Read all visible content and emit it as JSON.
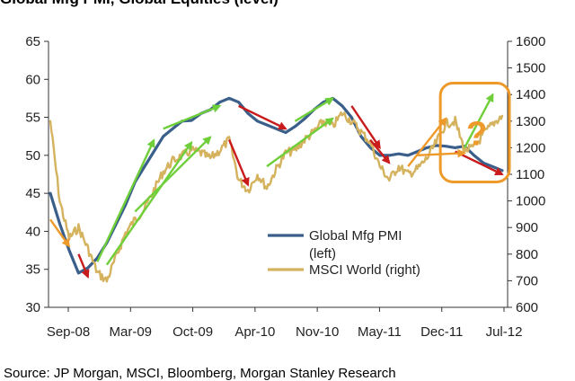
{
  "title": "Global Mfg PMI, Global Equities (level)",
  "source": "Source:  JP Morgan, MSCI, Bloomberg, Morgan Stanley Research",
  "chart_data": {
    "type": "line",
    "x_tick_labels": [
      "Sep-08",
      "Mar-09",
      "Oct-09",
      "Apr-10",
      "Nov-10",
      "May-11",
      "Dec-11",
      "Jul-12"
    ],
    "y_left": {
      "min": 30,
      "max": 65,
      "ticks": [
        "30",
        "35",
        "40",
        "45",
        "50",
        "55",
        "60",
        "65"
      ]
    },
    "y_right": {
      "min": 600,
      "max": 1600,
      "ticks": [
        "600",
        "700",
        "800",
        "900",
        "1000",
        "1100",
        "1200",
        "1300",
        "1400",
        "1500",
        "1600"
      ]
    },
    "grid": false,
    "legend_position": "bottom-center",
    "series": [
      {
        "name": "Global Mfg PMI (left)",
        "axis": "left",
        "color": "#3a5f8a",
        "x": [
          "2008-09",
          "2008-10",
          "2008-11",
          "2008-12",
          "2009-01",
          "2009-02",
          "2009-03",
          "2009-04",
          "2009-05",
          "2009-06",
          "2009-07",
          "2009-08",
          "2009-09",
          "2009-10",
          "2009-11",
          "2009-12",
          "2010-01",
          "2010-02",
          "2010-03",
          "2010-04",
          "2010-05",
          "2010-06",
          "2010-07",
          "2010-08",
          "2010-09",
          "2010-10",
          "2010-11",
          "2010-12",
          "2011-01",
          "2011-02",
          "2011-03",
          "2011-04",
          "2011-05",
          "2011-06",
          "2011-07",
          "2011-08",
          "2011-09",
          "2011-10",
          "2011-11",
          "2011-12",
          "2012-01",
          "2012-02",
          "2012-03",
          "2012-04",
          "2012-05",
          "2012-06",
          "2012-07",
          "2012-08",
          "2012-09"
        ],
        "values": [
          45.0,
          41.0,
          37.5,
          34.5,
          35.2,
          36.5,
          38.5,
          41.0,
          43.5,
          46.5,
          48.5,
          50.5,
          52.5,
          53.5,
          54.5,
          54.6,
          55.5,
          56.0,
          57.0,
          57.5,
          57.0,
          55.5,
          54.5,
          54.0,
          53.5,
          53.0,
          53.8,
          54.8,
          56.0,
          57.0,
          57.5,
          56.5,
          55.0,
          52.5,
          51.0,
          50.0,
          50.0,
          50.2,
          50.0,
          50.5,
          51.0,
          51.3,
          51.2,
          51.0,
          51.2,
          50.0,
          49.0,
          48.5,
          48.0
        ]
      },
      {
        "name": "MSCI World (right)",
        "axis": "right",
        "color": "#d4b25e",
        "x": [
          "2008-09",
          "2008-10",
          "2008-11",
          "2008-12",
          "2009-01",
          "2009-02",
          "2009-03",
          "2009-04",
          "2009-05",
          "2009-06",
          "2009-07",
          "2009-08",
          "2009-09",
          "2009-10",
          "2009-11",
          "2009-12",
          "2010-01",
          "2010-02",
          "2010-03",
          "2010-04",
          "2010-05",
          "2010-06",
          "2010-07",
          "2010-08",
          "2010-09",
          "2010-10",
          "2010-11",
          "2010-12",
          "2011-01",
          "2011-02",
          "2011-03",
          "2011-04",
          "2011-05",
          "2011-06",
          "2011-07",
          "2011-08",
          "2011-09",
          "2011-10",
          "2011-11",
          "2011-12",
          "2012-01",
          "2012-02",
          "2012-03",
          "2012-04",
          "2012-05",
          "2012-06",
          "2012-07",
          "2012-08",
          "2012-09"
        ],
        "values": [
          1300,
          1000,
          860,
          900,
          820,
          730,
          700,
          790,
          880,
          930,
          970,
          1040,
          1110,
          1150,
          1170,
          1190,
          1180,
          1160,
          1190,
          1230,
          1080,
          1040,
          1100,
          1050,
          1120,
          1180,
          1190,
          1230,
          1260,
          1300,
          1280,
          1330,
          1300,
          1260,
          1220,
          1130,
          1080,
          1130,
          1100,
          1120,
          1160,
          1220,
          1290,
          1300,
          1190,
          1200,
          1250,
          1290,
          1320
        ]
      }
    ],
    "annotations": [
      {
        "type": "arrow",
        "color": "red",
        "axis": "left",
        "from": [
          "2008-12",
          37.0
        ],
        "to": [
          "2009-01",
          34.0
        ]
      },
      {
        "type": "arrow",
        "color": "green",
        "axis": "left",
        "from": [
          "2009-02",
          36.0
        ],
        "to": [
          "2009-08",
          52.0
        ]
      },
      {
        "type": "arrow",
        "color": "green",
        "axis": "left",
        "from": [
          "2009-09",
          53.5
        ],
        "to": [
          "2010-03",
          56.5
        ]
      },
      {
        "type": "arrow",
        "color": "red",
        "axis": "left",
        "from": [
          "2010-05",
          56.5
        ],
        "to": [
          "2010-10",
          53.5
        ]
      },
      {
        "type": "arrow",
        "color": "green",
        "axis": "left",
        "from": [
          "2010-11",
          54.5
        ],
        "to": [
          "2011-03",
          57.5
        ]
      },
      {
        "type": "arrow",
        "color": "red",
        "axis": "left",
        "from": [
          "2011-05",
          56.5
        ],
        "to": [
          "2011-08",
          51.0
        ]
      },
      {
        "type": "arrow",
        "color": "red",
        "axis": "left",
        "from": [
          "2011-07",
          52.0
        ],
        "to": [
          "2011-09",
          49.0
        ]
      },
      {
        "type": "arrow",
        "color": "red",
        "axis": "left",
        "from": [
          "2012-04",
          50.5
        ],
        "to": [
          "2012-09",
          47.5
        ]
      },
      {
        "type": "arrow",
        "color": "orange",
        "axis": "left",
        "from": [
          "2011-12",
          50.0
        ],
        "to": [
          "2012-05",
          50.3
        ]
      },
      {
        "type": "arrow",
        "color": "green",
        "axis": "right",
        "from": [
          "2009-03",
          760
        ],
        "to": [
          "2009-12",
          1220
        ]
      },
      {
        "type": "arrow",
        "color": "green",
        "axis": "right",
        "from": [
          "2009-06",
          960
        ],
        "to": [
          "2010-02",
          1240
        ]
      },
      {
        "type": "arrow",
        "color": "red",
        "axis": "right",
        "from": [
          "2010-04",
          1230
        ],
        "to": [
          "2010-06",
          1060
        ]
      },
      {
        "type": "arrow",
        "color": "green",
        "axis": "right",
        "from": [
          "2010-08",
          1130
        ],
        "to": [
          "2011-03",
          1310
        ]
      },
      {
        "type": "arrow",
        "color": "orange",
        "axis": "right",
        "from": [
          "2011-11",
          1130
        ],
        "to": [
          "2012-03",
          1310
        ]
      },
      {
        "type": "arrow",
        "color": "green",
        "axis": "right",
        "from": [
          "2012-05",
          1200
        ],
        "to": [
          "2012-08",
          1400
        ]
      },
      {
        "type": "arrow",
        "color": "orange",
        "axis": "right",
        "from": [
          "2008-09",
          930
        ],
        "to": [
          "2008-11",
          830
        ]
      },
      {
        "type": "callout",
        "shape": "rounded-rect",
        "color": "orange",
        "text": "?",
        "x_range": [
          "2012-03",
          "2012-09"
        ],
        "y_range_left": [
          46.5,
          59.5
        ]
      }
    ]
  }
}
